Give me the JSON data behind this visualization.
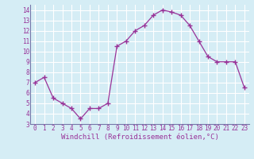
{
  "x": [
    0,
    1,
    2,
    3,
    4,
    5,
    6,
    7,
    8,
    9,
    10,
    11,
    12,
    13,
    14,
    15,
    16,
    17,
    18,
    19,
    20,
    21,
    22,
    23
  ],
  "y": [
    7.0,
    7.5,
    5.5,
    5.0,
    4.5,
    3.5,
    4.5,
    4.5,
    5.0,
    10.5,
    11.0,
    12.0,
    12.5,
    13.5,
    14.0,
    13.8,
    13.5,
    12.5,
    11.0,
    9.5,
    9.0,
    9.0,
    9.0,
    6.5
  ],
  "line_color": "#993399",
  "marker": "+",
  "xlabel": "Windchill (Refroidissement éolien,°C)",
  "xlim": [
    -0.5,
    23.5
  ],
  "ylim": [
    3,
    14.5
  ],
  "yticks": [
    3,
    4,
    5,
    6,
    7,
    8,
    9,
    10,
    11,
    12,
    13,
    14
  ],
  "xticks": [
    0,
    1,
    2,
    3,
    4,
    5,
    6,
    7,
    8,
    9,
    10,
    11,
    12,
    13,
    14,
    15,
    16,
    17,
    18,
    19,
    20,
    21,
    22,
    23
  ],
  "background_color": "#d5edf5",
  "grid_color": "#b8dce8",
  "tick_label_color": "#993399",
  "xlabel_color": "#993399",
  "xlabel_fontsize": 6.5,
  "tick_fontsize": 5.5,
  "border_color": "#7777aa"
}
